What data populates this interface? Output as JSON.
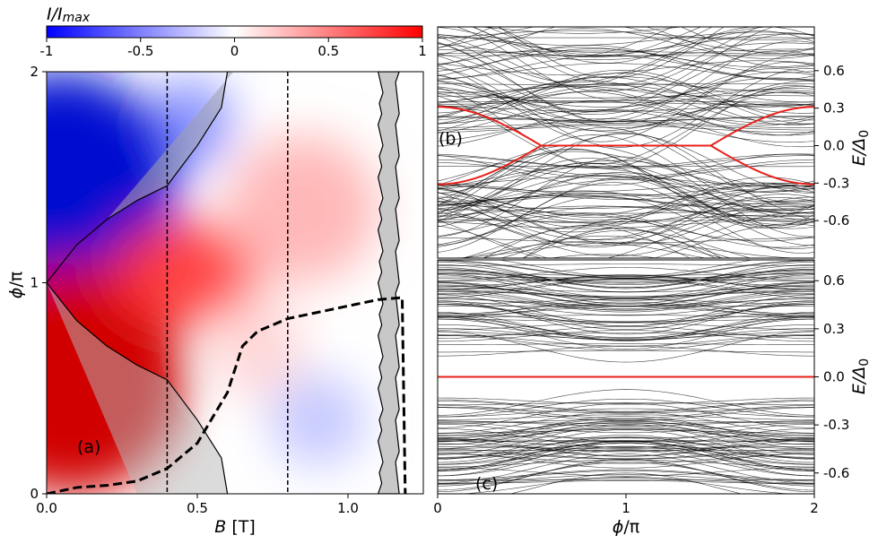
{
  "chart_data": [
    {
      "panel": "(a)",
      "type": "heatmap",
      "xlabel_var": "B",
      "xlabel_unit": "[T]",
      "ylabel_num": "ϕ",
      "ylabel_den": "/π",
      "xlim": [
        0,
        1.25
      ],
      "ylim": [
        0,
        2
      ],
      "xticks": [
        {
          "value": 0.0,
          "label": "0.0"
        },
        {
          "value": 0.5,
          "label": "0.5"
        },
        {
          "value": 1.0,
          "label": "1.0"
        }
      ],
      "yticks": [
        {
          "value": 0,
          "label": "0"
        },
        {
          "value": 1,
          "label": "1"
        },
        {
          "value": 2,
          "label": "2"
        }
      ],
      "colorbar": {
        "label_main": "I/I",
        "label_sub": "max",
        "range": [
          -1,
          1
        ],
        "cmap": "bwr",
        "ticks": [
          {
            "value": -1,
            "label": "-1"
          },
          {
            "value": -0.5,
            "label": "-0.5"
          },
          {
            "value": 0,
            "label": "0"
          },
          {
            "value": 0.5,
            "label": "0.5"
          },
          {
            "value": 1,
            "label": "1"
          }
        ]
      },
      "vlines_dashed": [
        0.4,
        0.8
      ],
      "topological_boundary": [
        {
          "B": 0.0,
          "phi": 1.0
        },
        {
          "B": 0.1,
          "phi": 1.18
        },
        {
          "B": 0.2,
          "phi": 1.3
        },
        {
          "B": 0.3,
          "phi": 1.39
        },
        {
          "B": 0.4,
          "phi": 1.46
        },
        {
          "B": 0.5,
          "phi": 1.65
        },
        {
          "B": 0.58,
          "phi": 1.83
        },
        {
          "B": 0.6,
          "phi": 2.0
        }
      ],
      "gap_closing_curve": [
        {
          "B": 0.0,
          "phi": 0.0
        },
        {
          "B": 0.1,
          "phi": 0.03
        },
        {
          "B": 0.2,
          "phi": 0.04
        },
        {
          "B": 0.3,
          "phi": 0.06
        },
        {
          "B": 0.4,
          "phi": 0.12
        },
        {
          "B": 0.5,
          "phi": 0.24
        },
        {
          "B": 0.6,
          "phi": 0.48
        },
        {
          "B": 0.65,
          "phi": 0.7
        },
        {
          "B": 0.7,
          "phi": 0.77
        },
        {
          "B": 0.8,
          "phi": 0.83
        },
        {
          "B": 0.9,
          "phi": 0.86
        },
        {
          "B": 1.0,
          "phi": 0.89
        },
        {
          "B": 1.1,
          "phi": 0.92
        },
        {
          "B": 1.18,
          "phi": 0.93
        },
        {
          "B": 1.19,
          "phi": 0.0
        }
      ],
      "gapless_band_B": [
        1.1,
        1.17
      ]
    },
    {
      "panel": "(b)",
      "type": "line",
      "description_series": "Andreev spectrum vs phase",
      "xlim": [
        0,
        2
      ],
      "ylim": [
        -0.9,
        0.95
      ],
      "ylabel_num": "E/Δ",
      "ylabel_sub": "0",
      "yticks": [
        {
          "value": 0.6,
          "label": "0.6"
        },
        {
          "value": 0.3,
          "label": "0.3"
        },
        {
          "value": 0.0,
          "label": "0.0"
        },
        {
          "value": -0.3,
          "label": "-0.3"
        },
        {
          "value": -0.6,
          "label": "-0.6"
        }
      ],
      "highlight": {
        "color": "#e8201a",
        "E_at_0": 0.31,
        "zero_crossing_phi": [
          0.55,
          1.45
        ]
      }
    },
    {
      "panel": "(c)",
      "type": "line",
      "description_series": "Andreev spectrum vs phase",
      "xlim": [
        0,
        2
      ],
      "ylim": [
        -0.73,
        0.73
      ],
      "xlabel_num": "ϕ",
      "xlabel_den": "/π",
      "ylabel_num": "E/Δ",
      "ylabel_sub": "0",
      "xticks": [
        {
          "value": 0,
          "label": "0"
        },
        {
          "value": 1,
          "label": "1"
        },
        {
          "value": 2,
          "label": "2"
        }
      ],
      "yticks": [
        {
          "value": 0.6,
          "label": "0.6"
        },
        {
          "value": 0.3,
          "label": "0.3"
        },
        {
          "value": 0.0,
          "label": "0.0"
        },
        {
          "value": -0.3,
          "label": "-0.3"
        },
        {
          "value": -0.6,
          "label": "-0.6"
        }
      ],
      "highlight": {
        "color": "#e8201a",
        "E": 0.0
      }
    }
  ]
}
